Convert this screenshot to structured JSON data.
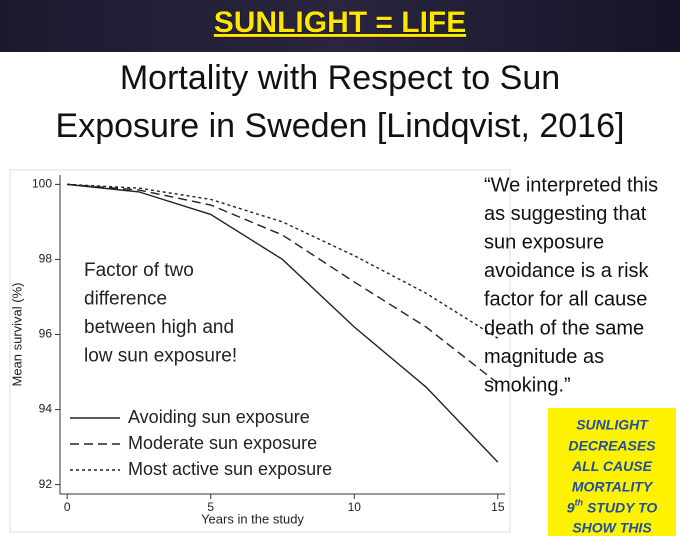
{
  "banner": "SUNLIGHT = LIFE",
  "slide_title": [
    "Mortality with Respect to Sun",
    "Exposure in Sweden [Lindqvist, 2016]"
  ],
  "quote": [
    "“We interpreted this",
    "as suggesting that",
    "sun exposure",
    "avoidance is a risk",
    "factor for all cause",
    "death of the same",
    "magnitude as",
    "smoking.”"
  ],
  "badge": [
    "SUNLIGHT",
    "DECREASES",
    "ALL CAUSE",
    "MORTALITY",
    {
      "base": "9",
      "sup": "th",
      "rest": " STUDY TO"
    },
    "SHOW THIS"
  ],
  "chart_data": {
    "type": "line",
    "x_label": "Years in the study",
    "y_label": "Mean survival (%)",
    "x": [
      0,
      2.5,
      5,
      7.5,
      10,
      12.5,
      15
    ],
    "series": [
      {
        "name": "Avoiding sun exposure",
        "color": "#222222",
        "line_style": "solid",
        "values": [
          100,
          99.8,
          99.2,
          98.0,
          96.2,
          94.6,
          92.6
        ]
      },
      {
        "name": "Moderate sun exposure",
        "color": "#222222",
        "line_style": "dashed",
        "values": [
          100,
          99.85,
          99.45,
          98.65,
          97.4,
          96.2,
          94.7
        ]
      },
      {
        "name": "Most active sun exposure",
        "color": "#222222",
        "line_style": "dotted",
        "values": [
          100,
          99.9,
          99.6,
          99.0,
          98.1,
          97.1,
          95.9
        ]
      }
    ],
    "xlim": [
      -0.25,
      15.25
    ],
    "ylim": [
      91.75,
      100.25
    ],
    "xticks": [
      0,
      5,
      10,
      15
    ],
    "yticks": [
      92,
      94,
      96,
      98,
      100
    ],
    "annotation": [
      "Factor of two",
      "difference",
      "between high and",
      "low sun exposure!"
    ]
  }
}
